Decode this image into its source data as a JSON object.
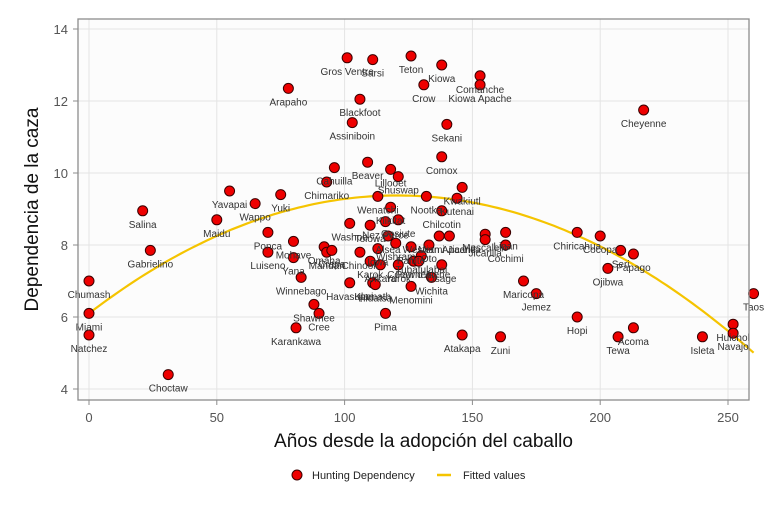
{
  "chart_data": {
    "type": "scatter",
    "title": "",
    "xlabel": "Años desde la adopción del caballo",
    "ylabel": "Dependencia de la caza",
    "xlim": [
      -4,
      263
    ],
    "ylim": [
      3.7,
      14.3
    ],
    "xticks": [
      0,
      50,
      100,
      150,
      200,
      250
    ],
    "yticks": [
      4,
      6,
      8,
      10,
      12,
      14
    ],
    "grid": true,
    "legend": {
      "placement": "bottom",
      "entries": [
        {
          "name": "Hunting Dependency",
          "marker": "circle"
        },
        {
          "name": "Fitted values",
          "marker": "line"
        }
      ]
    },
    "colors": {
      "point_fill": "#ee0000",
      "point_stroke": "#3a0000",
      "fit_line": "#f5c400",
      "plot_bg": "#fcfcfc",
      "grid": "#e4e4e4",
      "frame": "#8c8c8c"
    },
    "fitted": {
      "type": "quadratic",
      "x_range": [
        0,
        260
      ],
      "coefficients": {
        "a": 6.1,
        "b": 0.0543,
        "c": -0.000225
      }
    },
    "series": [
      {
        "name": "Hunting Dependency",
        "points": [
          {
            "label": "Chumash",
            "x": 0,
            "y": 7.0
          },
          {
            "label": "Miami",
            "x": 0,
            "y": 6.1
          },
          {
            "label": "Natchez",
            "x": 0,
            "y": 5.5
          },
          {
            "label": "Salina",
            "x": 21,
            "y": 8.95
          },
          {
            "label": "Gabrielino",
            "x": 24,
            "y": 7.85
          },
          {
            "label": "Choctaw",
            "x": 31,
            "y": 4.4
          },
          {
            "label": "Maidu",
            "x": 50,
            "y": 8.7
          },
          {
            "label": "Yavapai",
            "x": 55,
            "y": 9.5
          },
          {
            "label": "Wappo",
            "x": 65,
            "y": 9.15
          },
          {
            "label": "Ponca",
            "x": 70,
            "y": 8.35
          },
          {
            "label": "Luiseno",
            "x": 70,
            "y": 7.8
          },
          {
            "label": "Yuki",
            "x": 75,
            "y": 9.4
          },
          {
            "label": "Mohave",
            "x": 80,
            "y": 8.1
          },
          {
            "label": "Yana",
            "x": 80,
            "y": 7.65
          },
          {
            "label": "Winnebago",
            "x": 83,
            "y": 7.1
          },
          {
            "label": "Shawnee",
            "x": 88,
            "y": 6.35
          },
          {
            "label": "Cree",
            "x": 90,
            "y": 6.1
          },
          {
            "label": "Karankawa",
            "x": 81,
            "y": 5.7
          },
          {
            "label": "Omaha",
            "x": 92,
            "y": 7.95
          },
          {
            "label": "Mandan",
            "x": 93,
            "y": 7.8
          },
          {
            "label": "Crapa",
            "x": 95,
            "y": 7.85
          },
          {
            "label": "Chimariko",
            "x": 93,
            "y": 9.75
          },
          {
            "label": "Cahuilla",
            "x": 96,
            "y": 10.15
          },
          {
            "label": "Arapaho",
            "x": 78,
            "y": 12.35
          },
          {
            "label": "Gros Ventre",
            "x": 101,
            "y": 13.2
          },
          {
            "label": "Sarsi",
            "x": 111,
            "y": 13.15
          },
          {
            "label": "Teton",
            "x": 126,
            "y": 13.25
          },
          {
            "label": "Kiowa",
            "x": 138,
            "y": 13.0
          },
          {
            "label": "Crow",
            "x": 131,
            "y": 12.45
          },
          {
            "label": "Comanche",
            "x": 153,
            "y": 12.7
          },
          {
            "label": "Kiowa Apache",
            "x": 153,
            "y": 12.45
          },
          {
            "label": "Blackfoot",
            "x": 106,
            "y": 12.05
          },
          {
            "label": "Assiniboin",
            "x": 103,
            "y": 11.4
          },
          {
            "label": "Sekani",
            "x": 140,
            "y": 11.35
          },
          {
            "label": "Cheyenne",
            "x": 217,
            "y": 11.75
          },
          {
            "label": "Comox",
            "x": 138,
            "y": 10.45
          },
          {
            "label": "Beaver",
            "x": 109,
            "y": 10.3
          },
          {
            "label": "Lillooet",
            "x": 118,
            "y": 10.1
          },
          {
            "label": "Shuswap",
            "x": 121,
            "y": 9.9
          },
          {
            "label": "Kwakiutl",
            "x": 146,
            "y": 9.6
          },
          {
            "label": "Nootka",
            "x": 132,
            "y": 9.35
          },
          {
            "label": "Kutenai",
            "x": 144,
            "y": 9.3
          },
          {
            "label": "Wenatchi",
            "x": 113,
            "y": 9.35
          },
          {
            "label": "Wishram",
            "x": 120,
            "y": 8.05
          },
          {
            "label": "Klikitat",
            "x": 118,
            "y": 9.05
          },
          {
            "label": "Washoe",
            "x": 102,
            "y": 8.6
          },
          {
            "label": "Tolowa",
            "x": 110,
            "y": 8.55
          },
          {
            "label": "Gosiute",
            "x": 121,
            "y": 8.7
          },
          {
            "label": "Chilcotin",
            "x": 138,
            "y": 8.95
          },
          {
            "label": "Nez Perce",
            "x": 116,
            "y": 8.65
          },
          {
            "label": "Alsea",
            "x": 117,
            "y": 8.25
          },
          {
            "label": "Iowa",
            "x": 113,
            "y": 7.9
          },
          {
            "label": "Chinook",
            "x": 106,
            "y": 7.8
          },
          {
            "label": "Karok",
            "x": 110,
            "y": 7.55
          },
          {
            "label": "Arikara",
            "x": 114,
            "y": 7.45
          },
          {
            "label": "Klamath",
            "x": 111,
            "y": 6.95
          },
          {
            "label": "Yurok",
            "x": 121,
            "y": 7.45
          },
          {
            "label": "Havasupai",
            "x": 102,
            "y": 6.95
          },
          {
            "label": "Hidatsa",
            "x": 112,
            "y": 6.9
          },
          {
            "label": "Pima",
            "x": 116,
            "y": 6.1
          },
          {
            "label": "Pawnee",
            "x": 127,
            "y": 7.55
          },
          {
            "label": "Paiute",
            "x": 126,
            "y": 7.95
          },
          {
            "label": "Tubatulabal",
            "x": 130,
            "y": 7.7
          },
          {
            "label": "Coeur d'Alene",
            "x": 129,
            "y": 7.55
          },
          {
            "label": "Osage",
            "x": 138,
            "y": 7.45
          },
          {
            "label": "Menomini",
            "x": 126,
            "y": 6.85
          },
          {
            "label": "Wichita",
            "x": 134,
            "y": 7.1
          },
          {
            "label": "Western Apache",
            "x": 137,
            "y": 8.25
          },
          {
            "label": "Oto",
            "x": 133,
            "y": 8.0
          },
          {
            "label": "Miami Jicarilla",
            "x": 141,
            "y": 8.25
          },
          {
            "label": "Mescalero",
            "x": 155,
            "y": 8.3
          },
          {
            "label": "Jicarilla",
            "x": 155,
            "y": 8.15
          },
          {
            "label": "Lipan",
            "x": 163,
            "y": 8.35
          },
          {
            "label": "Cochimi",
            "x": 163,
            "y": 8.0
          },
          {
            "label": "Atakapa",
            "x": 146,
            "y": 5.5
          },
          {
            "label": "Zuni",
            "x": 161,
            "y": 5.45
          },
          {
            "label": "Maricopa",
            "x": 170,
            "y": 7.0
          },
          {
            "label": "Jemez",
            "x": 175,
            "y": 6.65
          },
          {
            "label": "Hopi",
            "x": 191,
            "y": 6.0
          },
          {
            "label": "Chiricahua",
            "x": 191,
            "y": 8.35
          },
          {
            "label": "Cocopa",
            "x": 200,
            "y": 8.25
          },
          {
            "label": "Seri",
            "x": 208,
            "y": 7.85
          },
          {
            "label": "Papago",
            "x": 213,
            "y": 7.75
          },
          {
            "label": "Ojibwa",
            "x": 203,
            "y": 7.35
          },
          {
            "label": "Tewa",
            "x": 207,
            "y": 5.45
          },
          {
            "label": "Acoma",
            "x": 213,
            "y": 5.7
          },
          {
            "label": "Isleta",
            "x": 240,
            "y": 5.45
          },
          {
            "label": "Huichol",
            "x": 252,
            "y": 5.8
          },
          {
            "label": "Navajo",
            "x": 252,
            "y": 5.55
          },
          {
            "label": "Taos",
            "x": 260,
            "y": 6.65
          }
        ]
      }
    ],
    "visible_labels": {
      "Chumash": [
        0,
        7.0
      ],
      "Miami": [
        0,
        6.1
      ],
      "Natchez": [
        0,
        5.5
      ]
    }
  }
}
